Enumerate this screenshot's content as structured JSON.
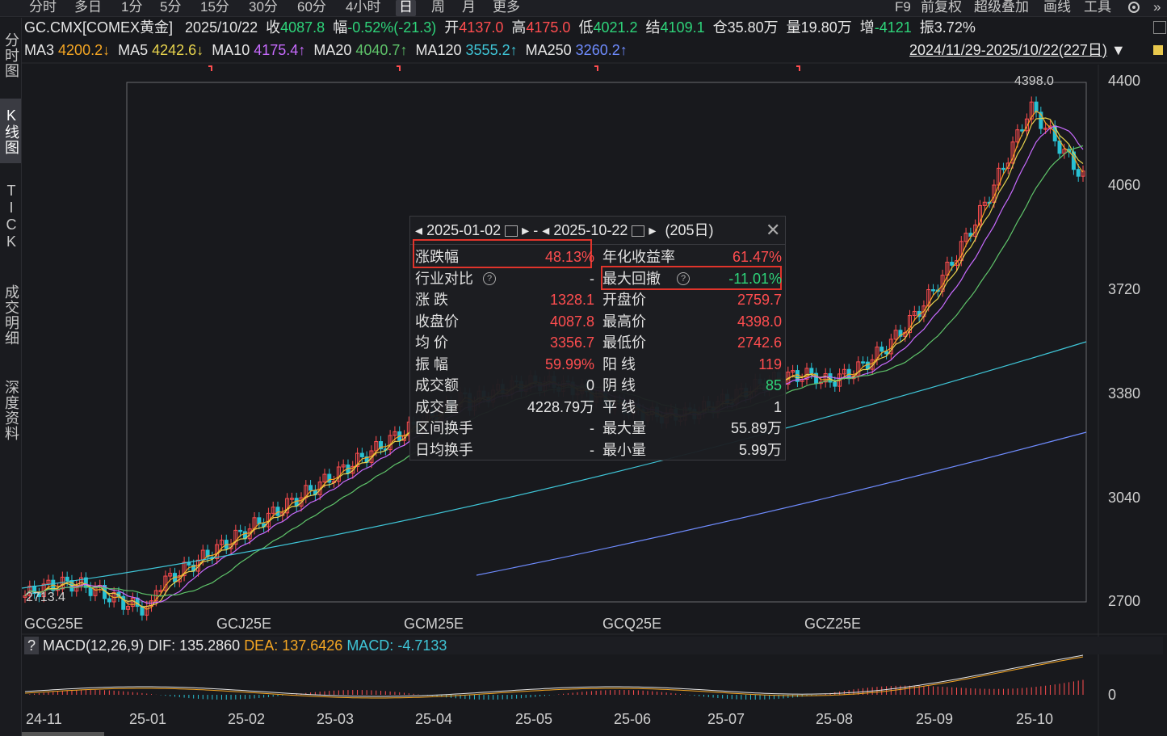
{
  "toolbar": {
    "periods": [
      "分时",
      "多日",
      "1分",
      "5分",
      "15分",
      "30分",
      "60分",
      "4小时",
      "日",
      "周",
      "月",
      "更多"
    ],
    "active_period": "日",
    "right_items": [
      "F9",
      "前复权",
      "超级叠加",
      "画线",
      "工具"
    ]
  },
  "sidebar": {
    "items": [
      "分时图",
      "K线图",
      "TICK",
      "成交明细",
      "深度资料"
    ],
    "active": "K线图"
  },
  "quote": {
    "symbol": "GC.CMX[COMEX黄金]",
    "date": "2025/10/22",
    "close_label": "收",
    "close": "4087.8",
    "change_label": "幅",
    "change": "-0.52%(-21.3)",
    "open_label": "开",
    "open": "4137.0",
    "high_label": "高",
    "high": "4175.0",
    "low_label": "低",
    "low": "4021.2",
    "settle_label": "结",
    "settle": "4109.1",
    "oi_label": "仓",
    "oi": "35.80万",
    "vol_label": "量",
    "vol": "19.80万",
    "inc_label": "增",
    "inc": "-4121",
    "amp_label": "振",
    "amp": "3.72%"
  },
  "ma": {
    "ma3_label": "MA3",
    "ma3": "4200.2↓",
    "ma5_label": "MA5",
    "ma5": "4242.6↓",
    "ma10_label": "MA10",
    "ma10": "4175.4↑",
    "ma20_label": "MA20",
    "ma20": "4040.7↑",
    "ma120_label": "MA120",
    "ma120": "3555.2↑",
    "ma250_label": "MA250",
    "ma250": "3260.2↑",
    "range": "2024/11/29-2025/10/22(227日)"
  },
  "colors": {
    "up": "#ff4d4f",
    "down": "#2ed47a",
    "ma3": "#f5a623",
    "ma5": "#e8d44d",
    "ma10": "#c86bff",
    "ma20": "#5fc46a",
    "ma120": "#3fc6d8",
    "ma250": "#6f8cff",
    "highlight": "#e0342b"
  },
  "chart": {
    "price_ticks": [
      "4400",
      "4060",
      "3720",
      "3380",
      "3040",
      "2700"
    ],
    "price_tick_values": [
      4400,
      4060,
      3720,
      3380,
      3040,
      2700
    ],
    "y_range": [
      2700,
      4400
    ],
    "contracts": [
      "GCG25E",
      "GCJ25E",
      "GCM25E",
      "GCQ25E",
      "GCZ25E"
    ],
    "high_marker": "4398.0",
    "low_marker": "2713.4",
    "months": [
      "24-11",
      "25-01",
      "25-02",
      "25-03",
      "25-04",
      "25-05",
      "25-06",
      "25-07",
      "25-08",
      "25-09",
      "25-10"
    ]
  },
  "macd": {
    "title": "MACD(12,26,9)",
    "dif_label": "DIF:",
    "dif": "135.2860",
    "dea_label": "DEA:",
    "dea": "137.6426",
    "macd_label": "MACD:",
    "macd": "-4.7133",
    "zero": "0"
  },
  "popup": {
    "start_date": "2025-01-02",
    "dash": "-",
    "end_date": "2025-10-22",
    "days": "(205日)",
    "left": [
      {
        "label": "涨跌幅",
        "value": "48.13%",
        "color": "red"
      },
      {
        "label": "行业对比",
        "value": "-",
        "color": "white",
        "help": true
      },
      {
        "label": "涨  跌",
        "value": "1328.1",
        "color": "red"
      },
      {
        "label": "收盘价",
        "value": "4087.8",
        "color": "red"
      },
      {
        "label": "均  价",
        "value": "3356.7",
        "color": "red"
      },
      {
        "label": "振  幅",
        "value": "59.99%",
        "color": "red"
      },
      {
        "label": "成交额",
        "value": "0",
        "color": "white"
      },
      {
        "label": "成交量",
        "value": "4228.79万",
        "color": "white"
      },
      {
        "label": "区间换手",
        "value": "-",
        "color": "white"
      },
      {
        "label": "日均换手",
        "value": "-",
        "color": "white"
      }
    ],
    "right": [
      {
        "label": "年化收益率",
        "value": "61.47%",
        "color": "red"
      },
      {
        "label": "最大回撤",
        "value": "-11.01%",
        "color": "green",
        "help": true
      },
      {
        "label": "开盘价",
        "value": "2759.7",
        "color": "red"
      },
      {
        "label": "最高价",
        "value": "4398.0",
        "color": "red"
      },
      {
        "label": "最低价",
        "value": "2742.6",
        "color": "red"
      },
      {
        "label": "阳  线",
        "value": "119",
        "color": "red"
      },
      {
        "label": "阴  线",
        "value": "85",
        "color": "green"
      },
      {
        "label": "平  线",
        "value": "1",
        "color": "white"
      },
      {
        "label": "最大量",
        "value": "55.89万",
        "color": "white"
      },
      {
        "label": "最小量",
        "value": "5.99万",
        "color": "white"
      }
    ]
  }
}
